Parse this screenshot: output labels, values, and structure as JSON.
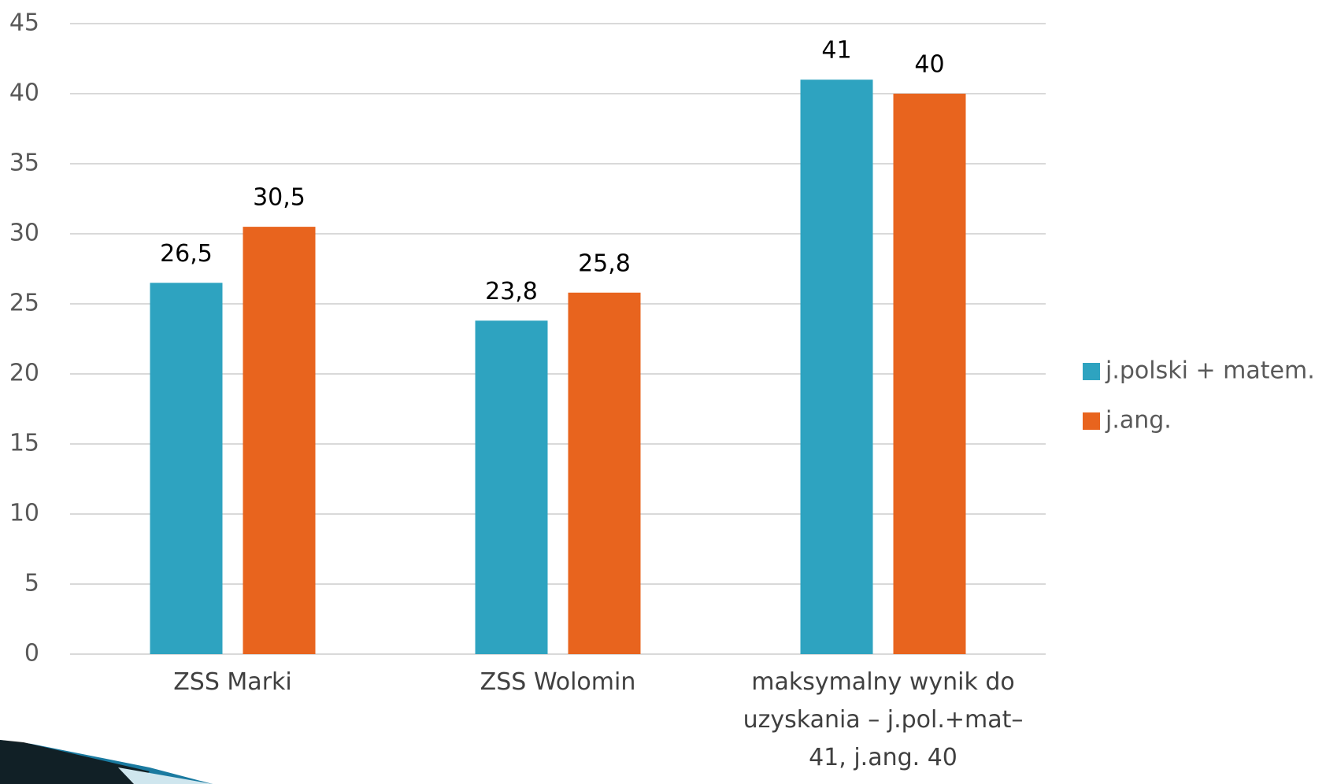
{
  "chart_data": {
    "type": "bar",
    "categories": [
      "ZSS Marki",
      "ZSS Wolomin",
      "maksymalny wynik do uzyskania – j.pol.+mat– 41, j.ang. 40"
    ],
    "series": [
      {
        "name": "j.polski + matem.",
        "color": "#2ea3c0",
        "values": [
          26.5,
          23.8,
          41
        ],
        "value_labels": [
          "26,5",
          "23,8",
          "41"
        ]
      },
      {
        "name": "j.ang.",
        "color": "#e8641e",
        "values": [
          30.5,
          25.8,
          40
        ],
        "value_labels": [
          "30,5",
          "25,8",
          "40"
        ]
      }
    ],
    "ylim": [
      0,
      45
    ],
    "yticks": [
      0,
      5,
      10,
      15,
      20,
      25,
      30,
      35,
      40,
      45
    ],
    "grid": true,
    "legend": "right"
  }
}
